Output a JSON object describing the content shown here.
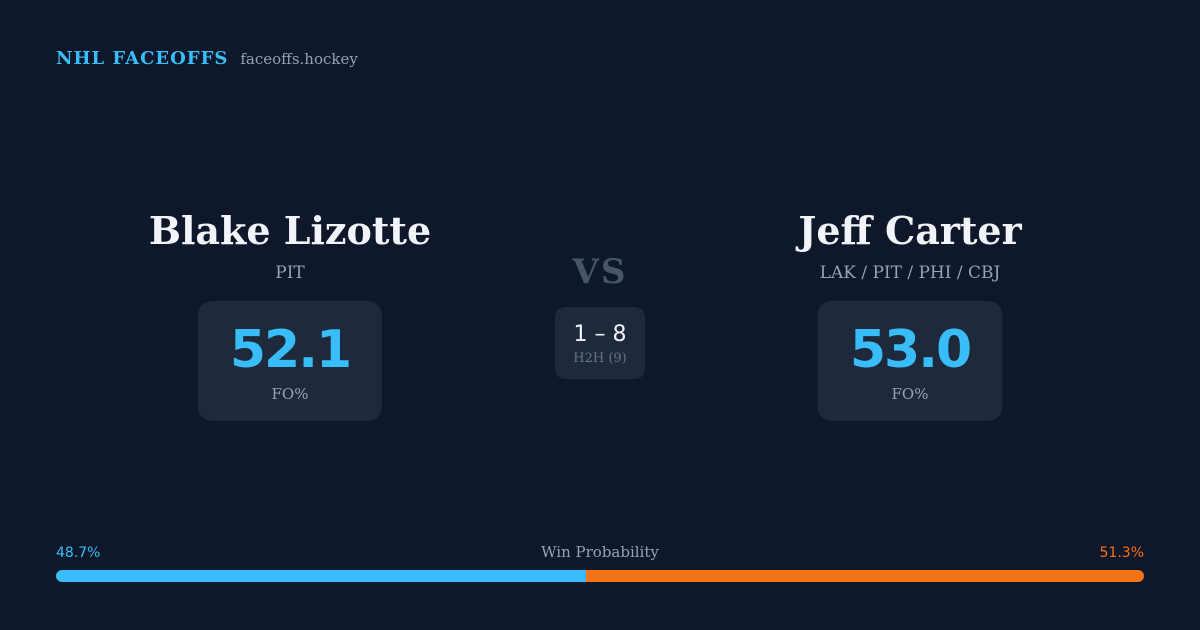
{
  "brand": {
    "title": "NHL FACEOFFS",
    "url": "faceoffs.hockey"
  },
  "players": [
    {
      "name": "Blake Lizotte",
      "teams": "PIT",
      "fo_pct": "52.1",
      "fo_label": "FO%"
    },
    {
      "name": "Jeff Carter",
      "teams": "LAK / PIT / PHI / CBJ",
      "fo_pct": "53.0",
      "fo_label": "FO%"
    }
  ],
  "vs_label": "VS",
  "h2h": {
    "score": "1 – 8",
    "label": "H2H (9)"
  },
  "win_probability": {
    "title": "Win Probability",
    "left_label": "48.7%",
    "right_label": "51.3%",
    "left_value": 48.7,
    "right_value": 51.3,
    "left_color": "#38bdf8",
    "right_color": "#f97316"
  }
}
